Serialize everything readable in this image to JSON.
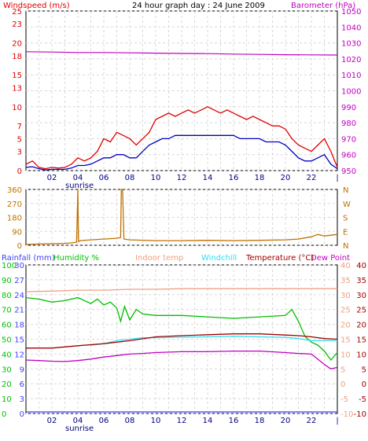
{
  "header": {
    "left_label": "Windspeed (m/s)",
    "center_title": "24 hour graph day : 24 June 2009",
    "right_label": "Barometer (hPa)"
  },
  "colors": {
    "background": "#ffffff",
    "grid": "#d8d8d8",
    "wind": "#e00000",
    "wind_avg": "#0000c0",
    "barometer": "#c000c0",
    "wind_dir": "#c07000",
    "rainfall": "#4040ff",
    "humidity": "#00c000",
    "indoor": "#f0a080",
    "windchill": "#30e0f0",
    "temperature": "#a00000",
    "dewpoint": "#c000c0"
  },
  "sunrise_label": "sunrise",
  "chart_data": [
    {
      "type": "line",
      "name": "windspeed-barometer",
      "x_ticks": [
        "02",
        "04",
        "06",
        "08",
        "10",
        "12",
        "14",
        "16",
        "18",
        "20",
        "22",
        "|"
      ],
      "left_axis": {
        "label": "Windspeed (m/s)",
        "ticks": [
          0,
          3,
          5,
          7,
          10,
          13,
          15,
          18,
          20,
          23,
          25
        ],
        "ylim": [
          0,
          25
        ]
      },
      "right_axis": {
        "label": "Barometer (hPa)",
        "ticks": [
          950,
          960,
          970,
          980,
          990,
          1000,
          1010,
          1020,
          1030,
          1040,
          1050
        ],
        "ylim": [
          950,
          1050
        ]
      },
      "series": [
        {
          "name": "gust",
          "axis": "left",
          "x": [
            0,
            0.5,
            1,
            1.5,
            2,
            2.5,
            3,
            3.5,
            4,
            4.5,
            5,
            5.5,
            6,
            6.5,
            7,
            7.5,
            8,
            8.5,
            9,
            9.5,
            10,
            10.5,
            11,
            11.5,
            12,
            12.5,
            13,
            13.5,
            14,
            14.5,
            15,
            15.5,
            16,
            16.5,
            17,
            17.5,
            18,
            18.5,
            19,
            19.5,
            20,
            20.5,
            21,
            21.5,
            22,
            22.5,
            23,
            23.5,
            24
          ],
          "values": [
            1,
            1.5,
            0.5,
            0.3,
            0.5,
            0.4,
            0.5,
            1,
            2,
            1.5,
            2,
            3,
            5,
            4.5,
            6,
            5.5,
            5,
            4,
            5,
            6,
            8,
            8.5,
            9,
            8.5,
            9,
            9.5,
            9,
            9.5,
            10,
            9.5,
            9,
            9.5,
            9,
            8.5,
            8,
            8.5,
            8,
            7.5,
            7,
            7,
            6.5,
            5,
            4,
            3.5,
            3,
            4,
            5,
            3,
            0.5
          ]
        },
        {
          "name": "average",
          "axis": "left",
          "x": [
            0,
            0.5,
            1,
            1.5,
            2,
            2.5,
            3,
            3.5,
            4,
            4.5,
            5,
            5.5,
            6,
            6.5,
            7,
            7.5,
            8,
            8.5,
            9,
            9.5,
            10,
            10.5,
            11,
            11.5,
            12,
            12.5,
            13,
            13.5,
            14,
            14.5,
            15,
            15.5,
            16,
            16.5,
            17,
            17.5,
            18,
            18.5,
            19,
            19.5,
            20,
            20.5,
            21,
            21.5,
            22,
            22.5,
            23,
            23.5,
            24
          ],
          "values": [
            0.5,
            0.6,
            0.3,
            0.1,
            0.2,
            0.2,
            0.2,
            0.4,
            0.8,
            0.8,
            1,
            1.5,
            2,
            2,
            2.5,
            2.5,
            2,
            2,
            3,
            4,
            4.5,
            5,
            5,
            5.5,
            5.5,
            5.5,
            5.5,
            5.5,
            5.5,
            5.5,
            5.5,
            5.5,
            5.5,
            5,
            5,
            5,
            5,
            4.5,
            4.5,
            4.5,
            4,
            3,
            2,
            1.5,
            1.5,
            2,
            2.5,
            1,
            0.3
          ]
        },
        {
          "name": "barometer",
          "axis": "right",
          "x": [
            0,
            2,
            4,
            6,
            8,
            10,
            12,
            14,
            16,
            18,
            20,
            22,
            24
          ],
          "values": [
            1024.5,
            1024.3,
            1024,
            1024,
            1023.8,
            1023.6,
            1023.4,
            1023.3,
            1023,
            1022.8,
            1022.6,
            1022.5,
            1022.4
          ]
        }
      ]
    },
    {
      "type": "line",
      "name": "wind-direction",
      "x_ticks": [
        "02",
        "04",
        "06",
        "08",
        "10",
        "12",
        "14",
        "16",
        "18",
        "20",
        "22",
        "|"
      ],
      "left_axis": {
        "ticks": [
          0,
          90,
          180,
          270,
          360
        ],
        "ylim": [
          0,
          360
        ]
      },
      "right_axis": {
        "ticks": [
          "N",
          "E",
          "S",
          "W",
          "N"
        ]
      },
      "series": [
        {
          "name": "direction",
          "x": [
            0,
            1,
            2,
            3,
            3.5,
            3.9,
            4,
            4.05,
            4.2,
            5,
            6,
            7,
            7.3,
            7.35,
            7.45,
            7.55,
            8,
            10,
            12,
            14,
            16,
            18,
            20,
            21,
            22,
            22.5,
            23,
            23.5,
            24
          ],
          "values": [
            5,
            8,
            10,
            12,
            15,
            20,
            360,
            25,
            30,
            35,
            40,
            45,
            50,
            360,
            360,
            40,
            35,
            30,
            30,
            32,
            30,
            32,
            35,
            40,
            55,
            70,
            60,
            65,
            70
          ]
        }
      ]
    },
    {
      "type": "line",
      "name": "temperature-humidity",
      "legend": [
        "Rainfall (mm)",
        "Humidity %",
        "Indoor temp",
        "Windchill",
        "Temperature (°C)",
        "Dew Point"
      ],
      "x_ticks": [
        "02",
        "04",
        "06",
        "08",
        "10",
        "12",
        "14",
        "16",
        "18",
        "20",
        "22",
        "|"
      ],
      "rain_axis": {
        "ticks": [
          0,
          3,
          6,
          9,
          12,
          15,
          18,
          21,
          24,
          27,
          30
        ]
      },
      "humidity_axis": {
        "ticks": [
          0,
          10,
          20,
          30,
          40,
          50,
          60,
          70,
          80,
          90,
          100
        ]
      },
      "temp_axis": {
        "ticks": [
          -10,
          -5,
          0,
          5,
          10,
          15,
          20,
          25,
          30,
          35,
          40
        ],
        "ylim": [
          -10,
          40
        ]
      },
      "series": [
        {
          "name": "indoor",
          "x": [
            0,
            2,
            4,
            6,
            8,
            10,
            12,
            14,
            16,
            18,
            20,
            22,
            24
          ],
          "values": [
            31,
            31.2,
            31.5,
            31.5,
            31.8,
            31.8,
            32,
            32,
            32,
            32,
            32,
            32,
            32
          ]
        },
        {
          "name": "humidity",
          "x": [
            0,
            1,
            2,
            3,
            4,
            5,
            5.5,
            6,
            6.5,
            7,
            7.3,
            7.6,
            8,
            8.5,
            9,
            10,
            12,
            14,
            16,
            18,
            20,
            20.5,
            21,
            21.5,
            22,
            22.5,
            23,
            23.5,
            24
          ],
          "values": [
            78,
            77,
            75,
            76,
            78,
            74,
            77,
            73,
            75,
            71,
            62,
            72,
            63,
            70,
            67,
            66,
            66,
            65,
            64,
            65,
            66,
            70,
            62,
            52,
            48,
            46,
            42,
            36,
            41
          ]
        },
        {
          "name": "windchill",
          "x": [
            5,
            6,
            7,
            8,
            9,
            10,
            12,
            14,
            16,
            18,
            20,
            21,
            22,
            23,
            24
          ],
          "values": [
            13,
            13.5,
            14.5,
            15,
            15.5,
            15.5,
            15.7,
            15.8,
            16,
            15.8,
            15.6,
            15.2,
            14.5,
            14.5,
            14.5
          ]
        },
        {
          "name": "temperature",
          "x": [
            0,
            2,
            4,
            6,
            8,
            10,
            12,
            14,
            16,
            18,
            20,
            21,
            22,
            23,
            24
          ],
          "values": [
            12,
            12,
            12.8,
            13.5,
            14.5,
            15.8,
            16.2,
            16.5,
            16.8,
            16.8,
            16.4,
            16.2,
            15.8,
            15.2,
            15
          ]
        },
        {
          "name": "dewpoint",
          "x": [
            0,
            1,
            2,
            3,
            4,
            5,
            6,
            7,
            8,
            9,
            10,
            12,
            14,
            16,
            18,
            20,
            21,
            22,
            23,
            23.5,
            24
          ],
          "values": [
            8,
            7.8,
            7.6,
            7.5,
            7.8,
            8.3,
            9,
            9.5,
            10,
            10.2,
            10.5,
            10.8,
            10.8,
            11,
            11,
            10.5,
            10.2,
            10,
            6.5,
            5,
            5.5
          ]
        },
        {
          "name": "rainfall",
          "x": [
            0,
            24
          ],
          "values": [
            0,
            0
          ]
        }
      ]
    }
  ]
}
